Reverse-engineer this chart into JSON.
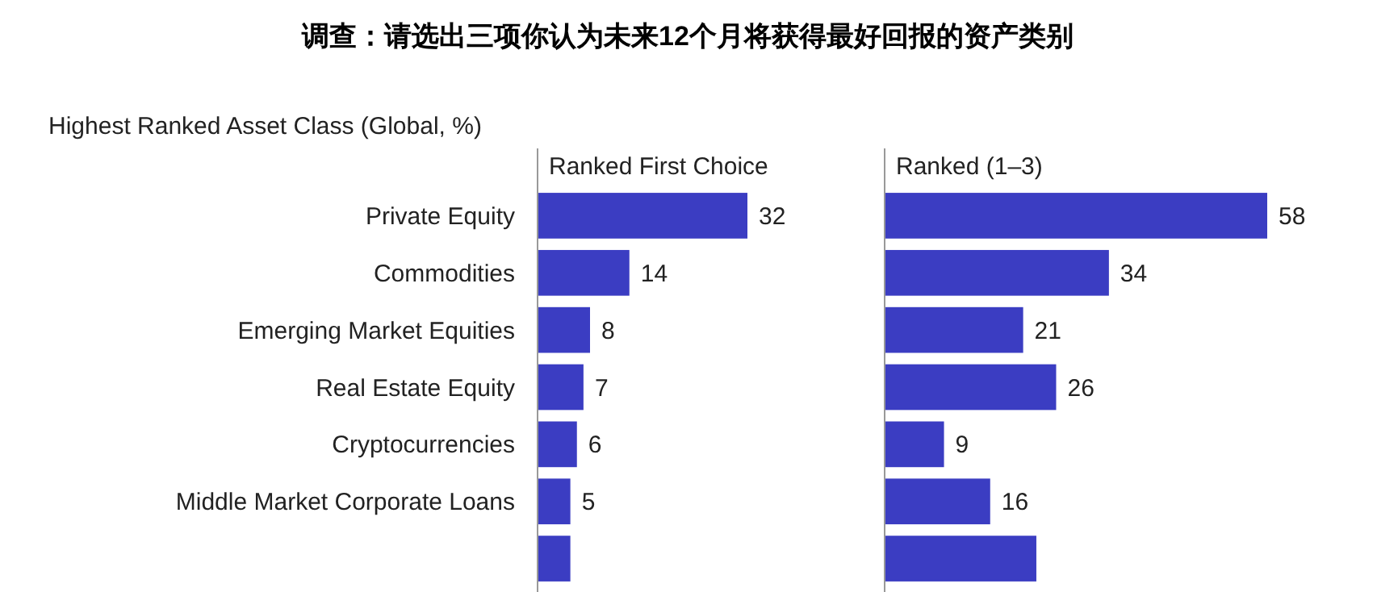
{
  "chart_data": [
    {
      "type": "bar",
      "orientation": "horizontal",
      "title": "调查：请选出三项你认为未来12个月将获得最好回报的资产类别",
      "subtitle": "Highest Ranked Asset Class (Global, %)",
      "annotations": [
        "Ranked First Choice"
      ],
      "categories": [
        "Private Equity",
        "Commodities",
        "Emerging Market Equities",
        "Real Estate Equity",
        "Cryptocurrencies",
        "Middle Market Corporate Loans",
        null
      ],
      "values": [
        32,
        14,
        8,
        7,
        6,
        5,
        5
      ],
      "value_labels": [
        "32",
        "14",
        "8",
        "7",
        "6",
        "5",
        null
      ],
      "color": "#3b3dc2",
      "tick_labels": "y"
    },
    {
      "type": "bar",
      "orientation": "horizontal",
      "annotations": [
        "Ranked (1–3)"
      ],
      "categories": [
        null,
        null,
        null,
        null,
        null,
        null,
        null
      ],
      "values": [
        58,
        34,
        21,
        26,
        9,
        16,
        23
      ],
      "value_labels": [
        "58",
        "34",
        "21",
        "26",
        "9",
        "16",
        null
      ],
      "color": "#3b3dc2",
      "tick_labels": false
    }
  ]
}
